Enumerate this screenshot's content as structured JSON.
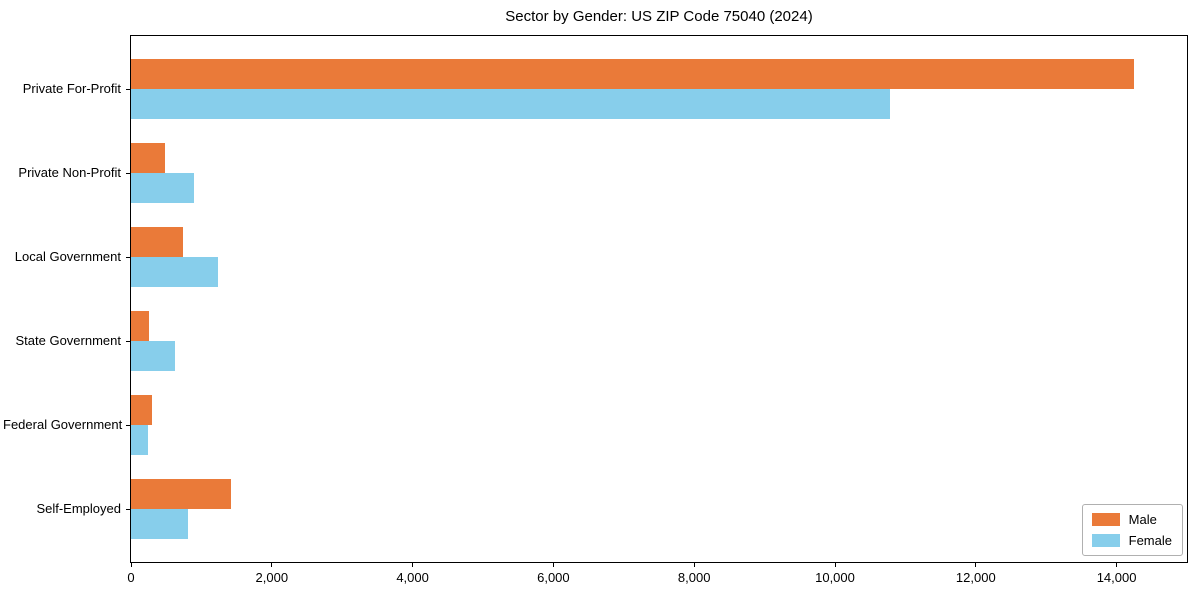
{
  "chart_data": {
    "type": "bar",
    "orientation": "horizontal",
    "title": "Sector by Gender: US ZIP Code 75040 (2024)",
    "categories": [
      "Private For-Profit",
      "Private Non-Profit",
      "Local Government",
      "State Government",
      "Federal Government",
      "Self-Employed"
    ],
    "series": [
      {
        "name": "Male",
        "color": "#EA7A39",
        "values": [
          14250,
          480,
          745,
          250,
          295,
          1420
        ]
      },
      {
        "name": "Female",
        "color": "#87CEEB",
        "values": [
          10780,
          890,
          1230,
          630,
          240,
          810
        ]
      }
    ],
    "xlim": [
      0,
      15000
    ],
    "xticks": [
      0,
      2000,
      4000,
      6000,
      8000,
      10000,
      12000,
      14000
    ],
    "xtick_labels": [
      "0",
      "2,000",
      "4,000",
      "6,000",
      "8,000",
      "10,000",
      "12,000",
      "14,000"
    ],
    "xlabel": "",
    "ylabel": "",
    "grid": false,
    "legend_position": "lower right",
    "axis_color": "#000000",
    "background_color": "#ffffff"
  }
}
